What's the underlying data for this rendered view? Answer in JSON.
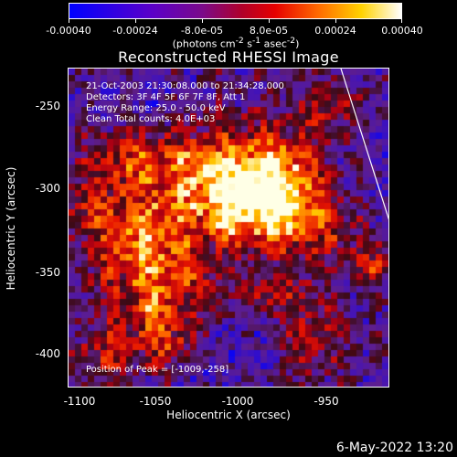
{
  "colorbar": {
    "tick_labels": [
      "-0.00040",
      "-0.00024",
      "-8.0e-05",
      "8.0e-05",
      "0.00024",
      "0.00040"
    ],
    "units_html": "(photons cm<sup>-2</sup> s<sup>-1</sup> asec<sup>-2</sup>)",
    "colors": [
      "#0000ff",
      "#5b00c8",
      "#7a0a8a",
      "#b0002a",
      "#e60000",
      "#ff6a00",
      "#ffd200",
      "#ffffff"
    ]
  },
  "title": "Reconstructed RHESSI Image",
  "info": {
    "time": "21-Oct-2003 21:30:08.000 to 21:34:28.000",
    "detectors": "Detectors: 3F 4F 5F 6F 7F 8F, Att 1",
    "energy": "Energy Range: 25.0 - 50.0 keV",
    "algorithm": "Clean      Total counts: 4.0E+03",
    "peak": "Position of Peak = [-1009,-258]"
  },
  "axes": {
    "xlabel": "Heliocentric X (arcsec)",
    "ylabel": "Heliocentric Y (arcsec)",
    "xticks": [
      "-1100",
      "-1050",
      "-1000",
      "-950"
    ],
    "yticks": [
      "-250",
      "-300",
      "-350",
      "-400"
    ]
  },
  "datestamp": "6-May-2022 13:20"
}
